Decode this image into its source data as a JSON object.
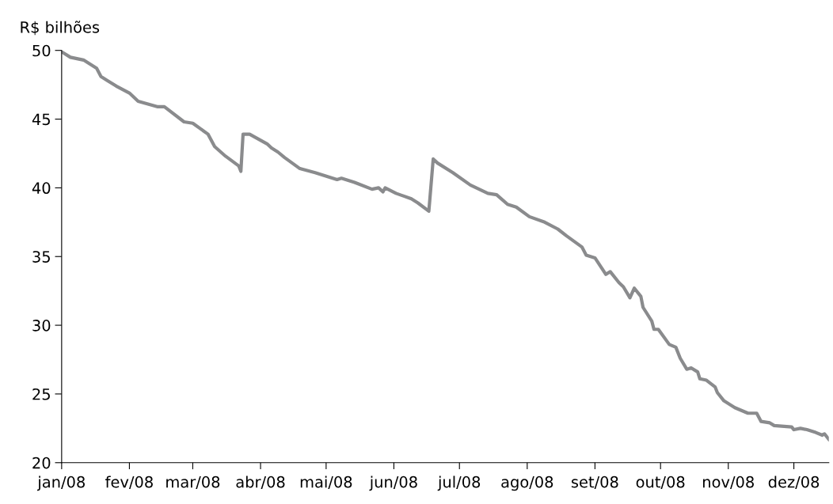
{
  "chart_data": {
    "type": "line",
    "ylabel": "R$ bilhões",
    "series": [
      {
        "color": "#8a8b8d",
        "x": [
          "2008-01-01",
          "2008-01-05",
          "2008-01-11",
          "2008-01-17",
          "2008-01-19",
          "2008-01-22",
          "2008-01-26",
          "2008-02-01",
          "2008-02-05",
          "2008-02-14",
          "2008-02-17",
          "2008-02-26",
          "2008-03-01",
          "2008-03-08",
          "2008-03-11",
          "2008-03-16",
          "2008-03-22",
          "2008-03-23",
          "2008-03-24",
          "2008-03-27",
          "2008-04-04",
          "2008-04-06",
          "2008-04-09",
          "2008-04-12",
          "2008-04-19",
          "2008-04-26",
          "2008-05-06",
          "2008-05-08",
          "2008-05-14",
          "2008-05-22",
          "2008-05-25",
          "2008-05-27",
          "2008-05-28",
          "2008-06-02",
          "2008-06-09",
          "2008-06-12",
          "2008-06-17",
          "2008-06-19",
          "2008-06-21",
          "2008-06-28",
          "2008-07-06",
          "2008-07-14",
          "2008-07-18",
          "2008-07-23",
          "2008-07-27",
          "2008-08-02",
          "2008-08-09",
          "2008-08-15",
          "2008-08-19",
          "2008-08-26",
          "2008-08-28",
          "2008-09-01",
          "2008-09-06",
          "2008-09-08",
          "2008-09-12",
          "2008-09-14",
          "2008-09-17",
          "2008-09-19",
          "2008-09-22",
          "2008-09-23",
          "2008-09-27",
          "2008-09-28",
          "2008-09-30",
          "2008-10-05",
          "2008-10-08",
          "2008-10-10",
          "2008-10-13",
          "2008-10-15",
          "2008-10-18",
          "2008-10-19",
          "2008-10-22",
          "2008-10-26",
          "2008-10-27",
          "2008-10-30",
          "2008-11-04",
          "2008-11-10",
          "2008-11-14",
          "2008-11-16",
          "2008-11-20",
          "2008-11-22",
          "2008-11-30",
          "2008-12-01",
          "2008-12-04",
          "2008-12-07",
          "2008-12-11",
          "2008-12-14",
          "2008-12-15",
          "2008-12-17"
        ],
        "values": [
          49.9,
          49.5,
          49.3,
          48.7,
          48.1,
          47.8,
          47.4,
          46.9,
          46.3,
          45.9,
          45.9,
          44.8,
          44.7,
          43.9,
          43.0,
          42.3,
          41.6,
          41.2,
          43.9,
          43.9,
          43.2,
          42.9,
          42.6,
          42.2,
          41.4,
          41.1,
          40.6,
          40.7,
          40.4,
          39.9,
          40.0,
          39.7,
          40.0,
          39.6,
          39.2,
          38.9,
          38.3,
          42.1,
          41.8,
          41.1,
          40.2,
          39.6,
          39.5,
          38.8,
          38.6,
          37.9,
          37.5,
          37.0,
          36.5,
          35.7,
          35.1,
          34.9,
          33.7,
          33.9,
          33.1,
          32.8,
          32.0,
          32.7,
          32.1,
          31.3,
          30.3,
          29.7,
          29.7,
          28.6,
          28.4,
          27.6,
          26.8,
          26.9,
          26.6,
          26.1,
          26.0,
          25.5,
          25.1,
          24.5,
          24.0,
          23.6,
          23.6,
          23.0,
          22.9,
          22.7,
          22.6,
          22.4,
          22.5,
          22.4,
          22.2,
          22.0,
          22.1,
          21.7
        ]
      }
    ],
    "xlim": [
      "2008-01-01",
      "2008-12-17"
    ],
    "xticks": [
      {
        "value": "2008-01-01",
        "label": "jan/08"
      },
      {
        "value": "2008-02-01",
        "label": "fev/08"
      },
      {
        "value": "2008-03-01",
        "label": "mar/08"
      },
      {
        "value": "2008-04-01",
        "label": "abr/08"
      },
      {
        "value": "2008-05-01",
        "label": "mai/08"
      },
      {
        "value": "2008-06-01",
        "label": "jun/08"
      },
      {
        "value": "2008-07-01",
        "label": "jul/08"
      },
      {
        "value": "2008-08-01",
        "label": "ago/08"
      },
      {
        "value": "2008-09-01",
        "label": "set/08"
      },
      {
        "value": "2008-10-01",
        "label": "out/08"
      },
      {
        "value": "2008-11-01",
        "label": "nov/08"
      },
      {
        "value": "2008-12-01",
        "label": "dez/08"
      }
    ],
    "ylim": [
      20,
      50
    ],
    "yticks": [
      20,
      25,
      30,
      35,
      40,
      45,
      50
    ],
    "grid": false,
    "marker": "none",
    "line_style": "solid"
  }
}
